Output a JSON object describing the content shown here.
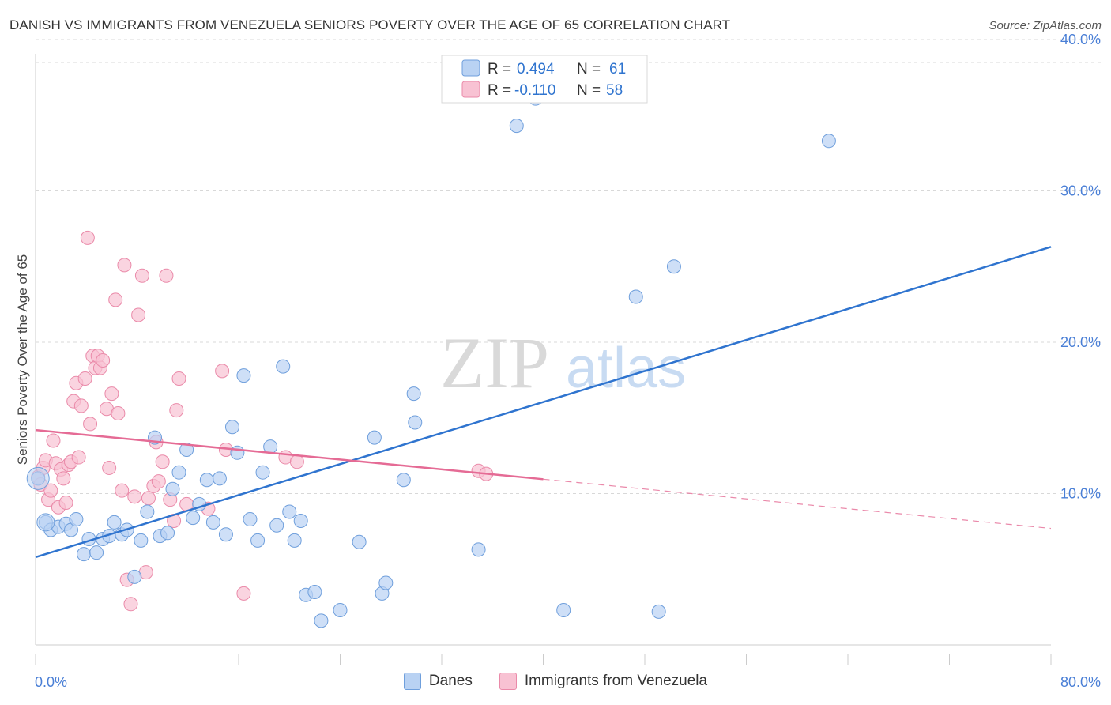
{
  "header": {
    "title": "DANISH VS IMMIGRANTS FROM VENEZUELA SENIORS POVERTY OVER THE AGE OF 65 CORRELATION CHART",
    "source": "Source: ZipAtlas.com"
  },
  "watermark": {
    "zip": "ZIP",
    "atlas": "atlas"
  },
  "legend": {
    "rows": [
      {
        "r_label": "R = ",
        "r_value": "0.494",
        "n_label": "N = ",
        "n_value": "61"
      },
      {
        "r_label": "R = ",
        "r_value": "-0.110",
        "n_label": "N = ",
        "n_value": "58"
      }
    ]
  },
  "bottom_legend": {
    "danes": "Danes",
    "venezuela": "Immigrants from Venezuela"
  },
  "colors": {
    "danes_fill": "#b9d2f3",
    "danes_stroke": "#6f9fdc",
    "danes_line": "#2f74cf",
    "venezuela_fill": "#f8c2d3",
    "venezuela_stroke": "#ea8aa9",
    "venezuela_line": "#e56b95",
    "tick_text": "#4a7fd6",
    "grid": "#d8d8d8"
  },
  "chart_data": {
    "type": "scatter",
    "title": "DANISH VS IMMIGRANTS FROM VENEZUELA SENIORS POVERTY OVER THE AGE OF 65 CORRELATION CHART",
    "xlabel": "",
    "ylabel": "Seniors Poverty Over the Age of 65",
    "xlim": [
      0,
      80
    ],
    "ylim": [
      0,
      42
    ],
    "x_tick_labels": [
      {
        "value": 0,
        "label": "0.0%"
      },
      {
        "value": 80,
        "label": "80.0%"
      }
    ],
    "y_tick_labels": [
      {
        "value": 10,
        "label": "10.0%"
      },
      {
        "value": 20,
        "label": "20.0%"
      },
      {
        "value": 30,
        "label": "30.0%"
      },
      {
        "value": 40,
        "label": "40.0%"
      }
    ],
    "grid": true,
    "legend_position": "top-center",
    "series": [
      {
        "name": "Danes",
        "r": 0.494,
        "n": 61,
        "trend": {
          "x": [
            0,
            80
          ],
          "y": [
            5.8,
            26.3
          ],
          "dashed_from": null
        },
        "points": [
          [
            0.2,
            11.0
          ],
          [
            0.8,
            8.1
          ],
          [
            1.2,
            7.6
          ],
          [
            1.8,
            7.8
          ],
          [
            2.4,
            8.0
          ],
          [
            2.8,
            7.6
          ],
          [
            3.2,
            8.3
          ],
          [
            3.8,
            6.0
          ],
          [
            4.2,
            7.0
          ],
          [
            4.8,
            6.1
          ],
          [
            5.3,
            7.0
          ],
          [
            5.8,
            7.2
          ],
          [
            6.2,
            8.1
          ],
          [
            6.8,
            7.3
          ],
          [
            7.2,
            7.6
          ],
          [
            7.8,
            4.5
          ],
          [
            8.3,
            6.9
          ],
          [
            8.8,
            8.8
          ],
          [
            9.4,
            13.7
          ],
          [
            9.8,
            7.2
          ],
          [
            10.4,
            7.4
          ],
          [
            10.8,
            10.3
          ],
          [
            11.3,
            11.4
          ],
          [
            11.9,
            12.9
          ],
          [
            12.4,
            8.4
          ],
          [
            12.9,
            9.3
          ],
          [
            13.5,
            10.9
          ],
          [
            14.0,
            8.1
          ],
          [
            14.5,
            11.0
          ],
          [
            15.0,
            7.3
          ],
          [
            15.5,
            14.4
          ],
          [
            15.9,
            12.7
          ],
          [
            16.4,
            17.8
          ],
          [
            16.9,
            8.3
          ],
          [
            17.5,
            6.9
          ],
          [
            17.9,
            11.4
          ],
          [
            18.5,
            13.1
          ],
          [
            19.0,
            7.9
          ],
          [
            19.5,
            18.4
          ],
          [
            20.0,
            8.8
          ],
          [
            20.4,
            6.9
          ],
          [
            20.9,
            8.2
          ],
          [
            21.3,
            3.3
          ],
          [
            22.0,
            3.5
          ],
          [
            22.5,
            1.6
          ],
          [
            24.0,
            2.3
          ],
          [
            25.5,
            6.8
          ],
          [
            26.7,
            13.7
          ],
          [
            27.3,
            3.4
          ],
          [
            27.6,
            4.1
          ],
          [
            29.0,
            10.9
          ],
          [
            29.8,
            16.6
          ],
          [
            29.9,
            14.7
          ],
          [
            34.9,
            6.3
          ],
          [
            37.9,
            34.3
          ],
          [
            39.4,
            36.1
          ],
          [
            41.6,
            2.3
          ],
          [
            47.3,
            23.0
          ],
          [
            49.1,
            2.2
          ],
          [
            50.3,
            25.0
          ],
          [
            62.5,
            33.3
          ]
        ]
      },
      {
        "name": "Immigrants from Venezuela",
        "r": -0.11,
        "n": 58,
        "trend": {
          "x": [
            0,
            80
          ],
          "y": [
            14.2,
            7.7
          ],
          "dashed_from": 40
        },
        "points": [
          [
            0.2,
            11.1
          ],
          [
            0.4,
            10.6
          ],
          [
            0.6,
            11.7
          ],
          [
            0.8,
            12.2
          ],
          [
            1.0,
            9.6
          ],
          [
            1.2,
            10.2
          ],
          [
            1.4,
            13.5
          ],
          [
            1.6,
            12.0
          ],
          [
            1.8,
            9.1
          ],
          [
            2.0,
            11.6
          ],
          [
            2.2,
            11.0
          ],
          [
            2.4,
            9.4
          ],
          [
            2.6,
            11.9
          ],
          [
            2.8,
            12.1
          ],
          [
            3.0,
            16.1
          ],
          [
            3.2,
            17.3
          ],
          [
            3.4,
            12.4
          ],
          [
            3.6,
            15.8
          ],
          [
            3.9,
            17.6
          ],
          [
            4.1,
            26.9
          ],
          [
            4.3,
            14.6
          ],
          [
            4.5,
            19.1
          ],
          [
            4.7,
            18.3
          ],
          [
            4.9,
            19.1
          ],
          [
            5.1,
            18.3
          ],
          [
            5.3,
            18.8
          ],
          [
            5.6,
            15.6
          ],
          [
            5.8,
            11.7
          ],
          [
            6.0,
            16.6
          ],
          [
            6.3,
            22.8
          ],
          [
            6.5,
            15.3
          ],
          [
            6.8,
            10.2
          ],
          [
            7.0,
            25.1
          ],
          [
            7.2,
            4.3
          ],
          [
            7.5,
            2.7
          ],
          [
            7.8,
            9.8
          ],
          [
            8.1,
            21.8
          ],
          [
            8.4,
            24.4
          ],
          [
            8.7,
            4.8
          ],
          [
            8.9,
            9.7
          ],
          [
            9.3,
            10.5
          ],
          [
            9.5,
            13.4
          ],
          [
            9.7,
            10.8
          ],
          [
            10.0,
            12.1
          ],
          [
            10.3,
            24.4
          ],
          [
            10.6,
            9.6
          ],
          [
            10.9,
            8.2
          ],
          [
            11.1,
            15.5
          ],
          [
            11.3,
            17.6
          ],
          [
            11.9,
            9.3
          ],
          [
            13.6,
            9.0
          ],
          [
            14.7,
            18.1
          ],
          [
            15.0,
            12.9
          ],
          [
            16.4,
            3.4
          ],
          [
            19.7,
            12.4
          ],
          [
            20.6,
            12.1
          ],
          [
            34.9,
            11.5
          ],
          [
            35.5,
            11.3
          ]
        ]
      }
    ]
  }
}
